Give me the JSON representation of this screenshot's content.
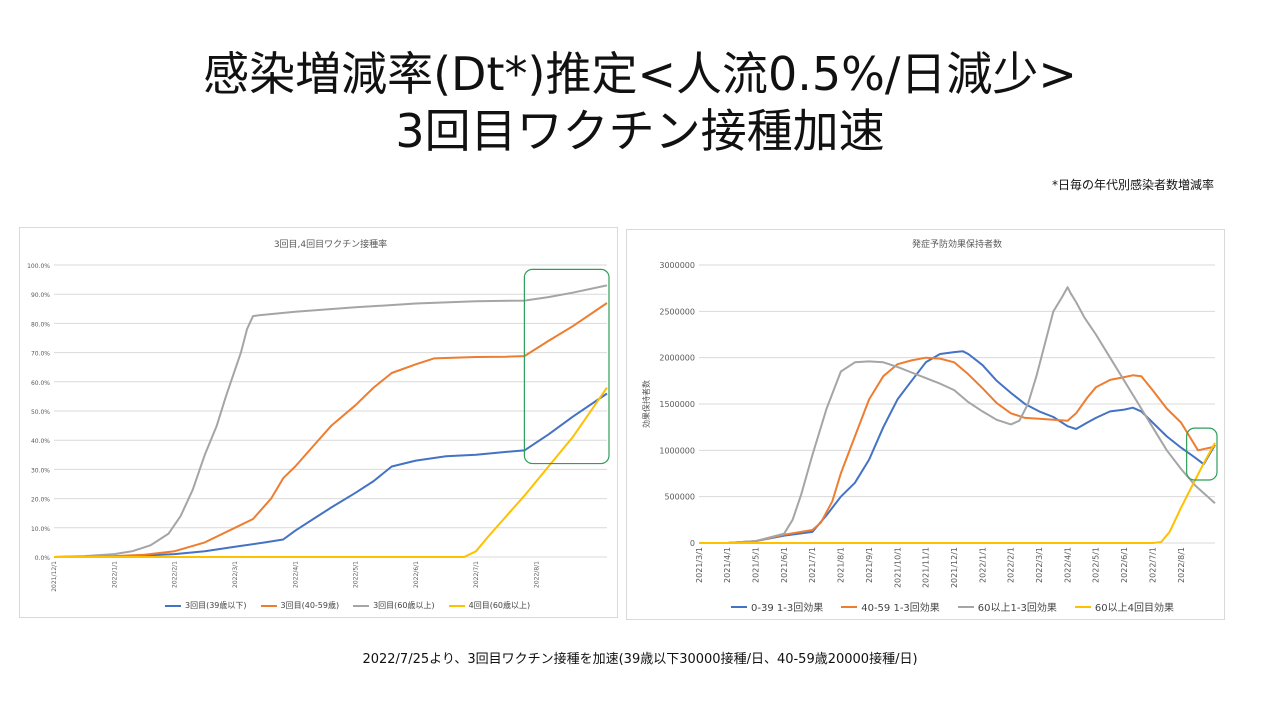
{
  "header": {
    "title_line1": "感染増減率(Dt*)推定<人流0.5%/日減少>",
    "title_line2": "3回目ワクチン接種加速",
    "footnote": "*日毎の年代別感染者数増減率"
  },
  "footer": {
    "text": "2022/7/25より、3回目ワクチン接種を加速(39歳以下30000接種/日、40-59歳20000接種/日)"
  },
  "chart_data": [
    {
      "type": "line",
      "title": "3回目,4回目ワクチン接種率",
      "ylim": [
        0,
        1.0
      ],
      "yticks": [
        0,
        0.1,
        0.2,
        0.3,
        0.4,
        0.5,
        0.6,
        0.7,
        0.8,
        0.9,
        1.0
      ],
      "ytick_labels": [
        "0.0%",
        "10.0%",
        "20.0%",
        "30.0%",
        "40.0%",
        "50.0%",
        "60.0%",
        "70.0%",
        "80.0%",
        "90.0%",
        "100.0%"
      ],
      "xlim": [
        0,
        9.17
      ],
      "xticks": [
        0,
        1,
        2,
        3,
        4,
        5,
        6,
        7,
        8
      ],
      "xtick_labels": [
        "2021/12/1",
        "2022/1/1",
        "2022/2/1",
        "2022/3/1",
        "2022/4/1",
        "2022/5/1",
        "2022/6/1",
        "2022/7/1",
        "2022/8/1"
      ],
      "grid": true,
      "legend_position": "bottom",
      "annotation_box": {
        "x": [
          7.8,
          9.17
        ],
        "y": [
          0.32,
          0.985
        ],
        "color": "#2e9e5b"
      },
      "series": [
        {
          "name": "3回目(39歳以下)",
          "color": "#4472c4",
          "x": [
            0,
            1,
            1.5,
            2,
            2.5,
            3,
            3.5,
            3.8,
            4,
            4.3,
            4.6,
            5,
            5.3,
            5.6,
            6,
            6.5,
            7,
            7.5,
            7.8,
            8.2,
            8.6,
            9.17
          ],
          "y": [
            0,
            0.002,
            0.005,
            0.01,
            0.02,
            0.035,
            0.05,
            0.06,
            0.09,
            0.13,
            0.17,
            0.22,
            0.26,
            0.31,
            0.33,
            0.345,
            0.35,
            0.36,
            0.365,
            0.42,
            0.48,
            0.56
          ]
        },
        {
          "name": "3回目(40-59歳)",
          "color": "#ed7d31",
          "x": [
            0,
            1,
            1.5,
            2,
            2.5,
            3,
            3.3,
            3.6,
            3.8,
            4,
            4.3,
            4.6,
            5,
            5.3,
            5.6,
            6,
            6.3,
            7,
            7.5,
            7.8,
            8.2,
            8.6,
            9.17
          ],
          "y": [
            0,
            0.003,
            0.008,
            0.02,
            0.05,
            0.1,
            0.13,
            0.2,
            0.27,
            0.31,
            0.38,
            0.45,
            0.52,
            0.58,
            0.63,
            0.66,
            0.68,
            0.685,
            0.686,
            0.688,
            0.74,
            0.79,
            0.87
          ]
        },
        {
          "name": "3回目(60歳以上)",
          "color": "#a5a5a5",
          "x": [
            0,
            0.5,
            1,
            1.3,
            1.6,
            1.9,
            2.1,
            2.3,
            2.5,
            2.7,
            2.85,
            3,
            3.1,
            3.2,
            3.3,
            3.4,
            4,
            5,
            6,
            7,
            7.8,
            8.2,
            8.6,
            9.17
          ],
          "y": [
            0,
            0.003,
            0.01,
            0.02,
            0.04,
            0.08,
            0.14,
            0.23,
            0.35,
            0.45,
            0.55,
            0.64,
            0.7,
            0.78,
            0.825,
            0.828,
            0.84,
            0.855,
            0.868,
            0.876,
            0.878,
            0.89,
            0.905,
            0.93
          ]
        },
        {
          "name": "4回目(60歳以上)",
          "color": "#ffc000",
          "x": [
            0,
            6.8,
            7,
            7.2,
            7.5,
            7.8,
            8.2,
            8.6,
            9.17
          ],
          "y": [
            0,
            0,
            0.02,
            0.07,
            0.14,
            0.21,
            0.31,
            0.41,
            0.58
          ]
        }
      ]
    },
    {
      "type": "line",
      "title": "発症予防効果保持者数",
      "ylabel": "効果保持者数",
      "ylim": [
        0,
        3000000
      ],
      "yticks": [
        0,
        500000,
        1000000,
        1500000,
        2000000,
        2500000,
        3000000
      ],
      "ytick_labels": [
        "0",
        "500000",
        "1000000",
        "1500000",
        "2000000",
        "2500000",
        "3000000"
      ],
      "xlim": [
        0,
        18.2
      ],
      "xticks": [
        0,
        1,
        2,
        3,
        4,
        5,
        6,
        7,
        8,
        9,
        10,
        11,
        12,
        13,
        14,
        15,
        16,
        17
      ],
      "xtick_labels": [
        "2021/3/1",
        "2021/4/1",
        "2021/5/1",
        "2021/6/1",
        "2021/7/1",
        "2021/8/1",
        "2021/9/1",
        "2021/10/1",
        "2021/11/1",
        "2021/12/1",
        "2022/1/1",
        "2022/2/1",
        "2022/3/1",
        "2022/4/1",
        "2022/5/1",
        "2022/6/1",
        "2022/7/1",
        "2022/8/1"
      ],
      "grid": true,
      "legend_position": "bottom",
      "annotation_box": {
        "x": [
          17.2,
          18.2
        ],
        "y": [
          680000,
          1240000
        ],
        "color": "#2e9e5b"
      },
      "series": [
        {
          "name": "0-39 1-3回効果",
          "color": "#4472c4",
          "x": [
            0,
            1,
            2,
            3,
            4,
            4.5,
            5,
            5.5,
            6,
            6.5,
            7,
            7.5,
            8,
            8.5,
            9,
            9.3,
            9.5,
            10,
            10.5,
            11,
            11.5,
            12,
            12.5,
            13,
            13.3,
            13.7,
            14,
            14.5,
            15,
            15.3,
            15.6,
            16,
            16.5,
            17,
            17.5,
            17.8,
            18.2
          ],
          "y": [
            0,
            0,
            20000,
            80000,
            120000,
            300000,
            500000,
            650000,
            900000,
            1250000,
            1550000,
            1750000,
            1950000,
            2040000,
            2060000,
            2070000,
            2040000,
            1920000,
            1750000,
            1620000,
            1500000,
            1420000,
            1360000,
            1260000,
            1230000,
            1300000,
            1350000,
            1420000,
            1440000,
            1460000,
            1420000,
            1300000,
            1150000,
            1030000,
            920000,
            850000,
            1060000
          ]
        },
        {
          "name": "40-59 1-3回効果",
          "color": "#ed7d31",
          "x": [
            0,
            1,
            2,
            3,
            4,
            4.3,
            4.7,
            5,
            5.5,
            6,
            6.5,
            7,
            7.5,
            8,
            8.5,
            9,
            9.5,
            10,
            10.5,
            11,
            11.5,
            12,
            12.5,
            13,
            13.3,
            13.7,
            14,
            14.5,
            15,
            15.3,
            15.6,
            16,
            16.5,
            17,
            17.3,
            17.6,
            18.2
          ],
          "y": [
            0,
            0,
            20000,
            90000,
            140000,
            220000,
            450000,
            750000,
            1150000,
            1550000,
            1800000,
            1930000,
            1970000,
            2000000,
            1990000,
            1950000,
            1820000,
            1670000,
            1510000,
            1400000,
            1350000,
            1340000,
            1330000,
            1320000,
            1400000,
            1570000,
            1680000,
            1760000,
            1790000,
            1810000,
            1800000,
            1650000,
            1450000,
            1300000,
            1150000,
            1000000,
            1040000
          ]
        },
        {
          "name": "60以上1-3回効果",
          "color": "#a5a5a5",
          "x": [
            0,
            1,
            2,
            2.5,
            3,
            3.3,
            3.6,
            4,
            4.5,
            5,
            5.5,
            6,
            6.5,
            7,
            7.5,
            8,
            8.5,
            9,
            9.5,
            10,
            10.5,
            11,
            11.3,
            11.6,
            11.9,
            12.2,
            12.5,
            12.8,
            13,
            13.1,
            13.3,
            13.6,
            14,
            14.5,
            15,
            15.5,
            16,
            16.5,
            17,
            17.5,
            18.2
          ],
          "y": [
            0,
            0,
            20000,
            60000,
            100000,
            250000,
            520000,
            950000,
            1450000,
            1850000,
            1950000,
            1960000,
            1950000,
            1900000,
            1840000,
            1780000,
            1720000,
            1650000,
            1520000,
            1420000,
            1330000,
            1280000,
            1320000,
            1500000,
            1800000,
            2150000,
            2500000,
            2650000,
            2760000,
            2700000,
            2600000,
            2430000,
            2250000,
            2000000,
            1750000,
            1500000,
            1250000,
            1000000,
            800000,
            620000,
            430000
          ]
        },
        {
          "name": "60以上4回目効果",
          "color": "#ffc000",
          "x": [
            0,
            16,
            16.3,
            16.6,
            17,
            17.4,
            17.8,
            18.2
          ],
          "y": [
            0,
            0,
            10000,
            120000,
            380000,
            620000,
            860000,
            1080000
          ]
        }
      ]
    }
  ]
}
